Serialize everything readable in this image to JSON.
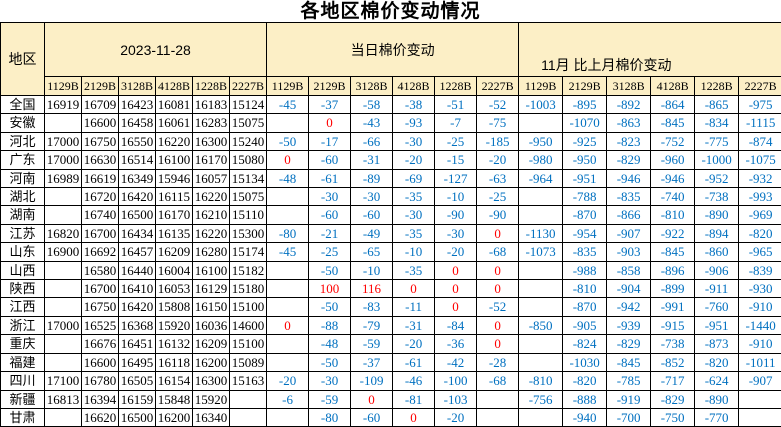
{
  "title": "各地区棉价变动情况",
  "colors": {
    "header_bg": "#FCEFC6",
    "border": "#000000",
    "price_text": "#000000",
    "negative_change_text": "#0070C0",
    "zero_or_positive_change_text": "#FF0000"
  },
  "table": {
    "region_header": "地区",
    "groups": [
      {
        "label": "2023-11-28",
        "columns": [
          "1129B",
          "2129B",
          "3128B",
          "4128B",
          "1228B",
          "2227B"
        ]
      },
      {
        "label": "当日棉价变动",
        "columns": [
          "1129B",
          "2129B",
          "3128B",
          "4128B",
          "1228B",
          "2227B"
        ]
      },
      {
        "label": "11月 比上月棉价变动",
        "columns": [
          "1129B",
          "2129B",
          "3128B",
          "4128B",
          "1228B",
          "2227B"
        ]
      }
    ],
    "rows": [
      {
        "region": "全国",
        "price": [
          "16919",
          "16709",
          "16423",
          "16081",
          "16183",
          "15124"
        ],
        "daily": [
          "-45",
          "-37",
          "-58",
          "-38",
          "-51",
          "-52"
        ],
        "monthly": [
          "-1003",
          "-895",
          "-892",
          "-864",
          "-865",
          "-975"
        ]
      },
      {
        "region": "安徽",
        "price": [
          "",
          "16600",
          "16458",
          "16061",
          "16283",
          "15075"
        ],
        "daily": [
          "",
          "0",
          "-43",
          "-93",
          "-7",
          "-75"
        ],
        "monthly": [
          "",
          "-1070",
          "-863",
          "-845",
          "-834",
          "-1115"
        ]
      },
      {
        "region": "河北",
        "price": [
          "17000",
          "16750",
          "16550",
          "16220",
          "16300",
          "15240"
        ],
        "daily": [
          "-50",
          "-17",
          "-66",
          "-30",
          "-25",
          "-185"
        ],
        "monthly": [
          "-950",
          "-925",
          "-823",
          "-752",
          "-775",
          "-874"
        ]
      },
      {
        "region": "广东",
        "price": [
          "17000",
          "16630",
          "16514",
          "16100",
          "16170",
          "15080"
        ],
        "daily": [
          "0",
          "-60",
          "-31",
          "-20",
          "-15",
          "-20"
        ],
        "monthly": [
          "-980",
          "-950",
          "-829",
          "-960",
          "-1000",
          "-1075"
        ]
      },
      {
        "region": "河南",
        "price": [
          "16989",
          "16619",
          "16349",
          "15946",
          "16057",
          "15134"
        ],
        "daily": [
          "-48",
          "-61",
          "-89",
          "-69",
          "-127",
          "-63"
        ],
        "monthly": [
          "-964",
          "-951",
          "-946",
          "-946",
          "-952",
          "-932"
        ]
      },
      {
        "region": "湖北",
        "price": [
          "",
          "16720",
          "16420",
          "16115",
          "16220",
          "15075"
        ],
        "daily": [
          "",
          "-30",
          "-30",
          "-35",
          "-10",
          "-25"
        ],
        "monthly": [
          "",
          "-788",
          "-835",
          "-740",
          "-738",
          "-993"
        ]
      },
      {
        "region": "湖南",
        "price": [
          "",
          "16740",
          "16500",
          "16170",
          "16210",
          "15110"
        ],
        "daily": [
          "",
          "-60",
          "-60",
          "-30",
          "-90",
          "-90"
        ],
        "monthly": [
          "",
          "-870",
          "-866",
          "-810",
          "-890",
          "-969"
        ]
      },
      {
        "region": "江苏",
        "price": [
          "16820",
          "16700",
          "16434",
          "16135",
          "16220",
          "15300"
        ],
        "daily": [
          "-80",
          "-21",
          "-49",
          "-35",
          "-30",
          "0"
        ],
        "monthly": [
          "-1130",
          "-954",
          "-907",
          "-922",
          "-894",
          "-820"
        ]
      },
      {
        "region": "山东",
        "price": [
          "16900",
          "16692",
          "16457",
          "16209",
          "16280",
          "15174"
        ],
        "daily": [
          "-45",
          "-25",
          "-65",
          "-10",
          "-20",
          "-68"
        ],
        "monthly": [
          "-1073",
          "-835",
          "-903",
          "-845",
          "-860",
          "-965"
        ]
      },
      {
        "region": "山西",
        "price": [
          "",
          "16580",
          "16440",
          "16004",
          "16100",
          "15182"
        ],
        "daily": [
          "",
          "-50",
          "-10",
          "-35",
          "0",
          "0"
        ],
        "monthly": [
          "",
          "-988",
          "-858",
          "-896",
          "-906",
          "-839"
        ]
      },
      {
        "region": "陕西",
        "price": [
          "",
          "16700",
          "16410",
          "16053",
          "16129",
          "15180"
        ],
        "daily": [
          "",
          "100",
          "116",
          "0",
          "0",
          "0"
        ],
        "monthly": [
          "",
          "-810",
          "-904",
          "-899",
          "-911",
          "-930"
        ]
      },
      {
        "region": "江西",
        "price": [
          "",
          "16750",
          "16420",
          "15808",
          "16150",
          "15100"
        ],
        "daily": [
          "",
          "-50",
          "-83",
          "-11",
          "0",
          "-52"
        ],
        "monthly": [
          "",
          "-870",
          "-942",
          "-991",
          "-760",
          "-910"
        ]
      },
      {
        "region": "浙江",
        "price": [
          "17000",
          "16525",
          "16368",
          "15920",
          "16036",
          "14600"
        ],
        "daily": [
          "0",
          "-88",
          "-79",
          "-31",
          "-84",
          "0"
        ],
        "monthly": [
          "-850",
          "-905",
          "-939",
          "-915",
          "-951",
          "-1440"
        ]
      },
      {
        "region": "重庆",
        "price": [
          "",
          "16676",
          "16451",
          "16132",
          "16209",
          "15100"
        ],
        "daily": [
          "",
          "-48",
          "-59",
          "-20",
          "-36",
          "0"
        ],
        "monthly": [
          "",
          "-824",
          "-829",
          "-738",
          "-873",
          "-910"
        ]
      },
      {
        "region": "福建",
        "price": [
          "",
          "16600",
          "16495",
          "16118",
          "16200",
          "15089"
        ],
        "daily": [
          "",
          "-50",
          "-37",
          "-61",
          "-42",
          "-28"
        ],
        "monthly": [
          "",
          "-1030",
          "-845",
          "-852",
          "-820",
          "-1011"
        ]
      },
      {
        "region": "四川",
        "price": [
          "17100",
          "16780",
          "16505",
          "16154",
          "16300",
          "15163"
        ],
        "daily": [
          "-20",
          "-30",
          "-109",
          "-46",
          "-100",
          "-68"
        ],
        "monthly": [
          "-810",
          "-820",
          "-785",
          "-717",
          "-624",
          "-907"
        ]
      },
      {
        "region": "新疆",
        "price": [
          "16813",
          "16394",
          "16159",
          "15848",
          "15920",
          ""
        ],
        "daily": [
          "-6",
          "-59",
          "0",
          "-81",
          "-103",
          ""
        ],
        "monthly": [
          "-756",
          "-888",
          "-919",
          "-829",
          "-890",
          ""
        ]
      },
      {
        "region": "甘肃",
        "price": [
          "",
          "16620",
          "16500",
          "16200",
          "16340",
          ""
        ],
        "daily": [
          "",
          "-80",
          "-60",
          "0",
          "-20",
          ""
        ],
        "monthly": [
          "",
          "-940",
          "-700",
          "-750",
          "-770",
          ""
        ]
      }
    ]
  }
}
